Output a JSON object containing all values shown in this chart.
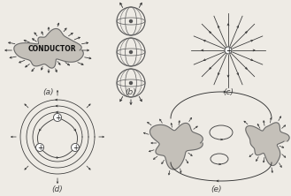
{
  "bg_color": "#eeebe5",
  "fig_width": 3.29,
  "fig_height": 2.22,
  "dpi": 100,
  "conductor_color": "#c0bcb5",
  "conductor_edge": "#666666",
  "arrow_color": "#333333",
  "label_fontsize": 6.5,
  "labels": [
    "(a)",
    "(b)",
    "(c)",
    "(d)",
    "(e)"
  ],
  "title_text": "CONDUCTOR",
  "title_fontsize": 5.5
}
